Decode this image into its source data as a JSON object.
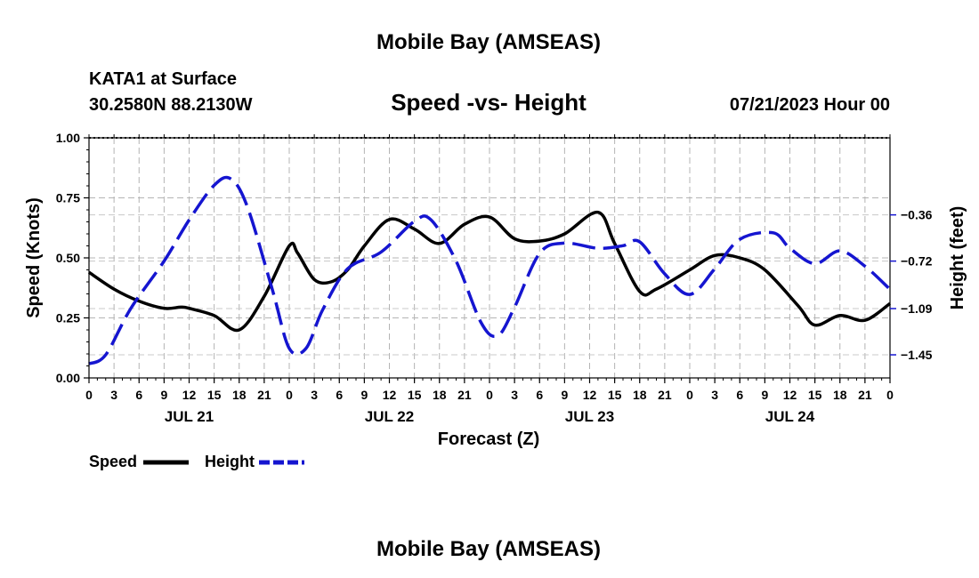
{
  "page": {
    "title_top": "Mobile Bay (AMSEAS)",
    "title_bottom": "Mobile Bay (AMSEAS)",
    "station": "KATA1 at Surface",
    "coords": "30.2580N  88.2130W",
    "datetime": "07/21/2023 Hour 00"
  },
  "chart_data": {
    "type": "line",
    "title": "Speed -vs- Height",
    "xlabel": "Forecast (Z)",
    "ylabel_left": "Speed (Knots)",
    "ylabel_right": "Height (feet)",
    "x_range_hours": [
      0,
      96
    ],
    "ylim_left": [
      0,
      1.0
    ],
    "ylim_right": [
      -1.63,
      0.24
    ],
    "y_ticks_left": [
      {
        "v": 0.0,
        "label": "0.00"
      },
      {
        "v": 0.25,
        "label": "0.25"
      },
      {
        "v": 0.5,
        "label": "0.50"
      },
      {
        "v": 0.75,
        "label": "0.75"
      },
      {
        "v": 1.0,
        "label": "1.00"
      }
    ],
    "y_ticks_right": [
      {
        "v": -1.45,
        "label": "−1.45"
      },
      {
        "v": -1.09,
        "label": "−1.09"
      },
      {
        "v": -0.72,
        "label": "−0.72"
      },
      {
        "v": -0.36,
        "label": "−0.36"
      }
    ],
    "x_tick_labels": [
      "0",
      "3",
      "6",
      "9",
      "12",
      "15",
      "18",
      "21",
      "0",
      "3",
      "6",
      "9",
      "12",
      "15",
      "18",
      "21",
      "0",
      "3",
      "6",
      "9",
      "12",
      "15",
      "18",
      "21",
      "0",
      "3",
      "6",
      "9",
      "12",
      "15",
      "18",
      "21",
      "0"
    ],
    "day_labels": [
      {
        "hour": 12,
        "label": "JUL 21"
      },
      {
        "hour": 36,
        "label": "JUL 22"
      },
      {
        "hour": 60,
        "label": "JUL 23"
      },
      {
        "hour": 84,
        "label": "JUL 24"
      }
    ],
    "legend": {
      "speed": "Speed",
      "height": "Height"
    },
    "series": [
      {
        "name": "Speed",
        "color": "#000000",
        "axis": "left",
        "points": [
          [
            0,
            0.44
          ],
          [
            3,
            0.37
          ],
          [
            6,
            0.32
          ],
          [
            9,
            0.29
          ],
          [
            11,
            0.295
          ],
          [
            12,
            0.29
          ],
          [
            15,
            0.26
          ],
          [
            18,
            0.2
          ],
          [
            21,
            0.34
          ],
          [
            24,
            0.55
          ],
          [
            25,
            0.52
          ],
          [
            27,
            0.41
          ],
          [
            29,
            0.4
          ],
          [
            31,
            0.45
          ],
          [
            33,
            0.55
          ],
          [
            36,
            0.66
          ],
          [
            39,
            0.62
          ],
          [
            42,
            0.56
          ],
          [
            45,
            0.64
          ],
          [
            48,
            0.67
          ],
          [
            51,
            0.58
          ],
          [
            54,
            0.57
          ],
          [
            57,
            0.6
          ],
          [
            61,
            0.69
          ],
          [
            63,
            0.56
          ],
          [
            66,
            0.36
          ],
          [
            68,
            0.37
          ],
          [
            72,
            0.45
          ],
          [
            75,
            0.51
          ],
          [
            78,
            0.5
          ],
          [
            81,
            0.45
          ],
          [
            85,
            0.3
          ],
          [
            87,
            0.22
          ],
          [
            90,
            0.26
          ],
          [
            93,
            0.24
          ],
          [
            96,
            0.31
          ]
        ]
      },
      {
        "name": "Height",
        "color": "#1515d0",
        "axis": "right",
        "points": [
          [
            0,
            -1.52
          ],
          [
            2,
            -1.45
          ],
          [
            5,
            -1.09
          ],
          [
            9,
            -0.72
          ],
          [
            12,
            -0.4
          ],
          [
            15,
            -0.13
          ],
          [
            17,
            -0.08
          ],
          [
            19,
            -0.3
          ],
          [
            22,
            -0.95
          ],
          [
            24,
            -1.4
          ],
          [
            26,
            -1.4
          ],
          [
            28,
            -1.1
          ],
          [
            31,
            -0.78
          ],
          [
            35,
            -0.65
          ],
          [
            39,
            -0.41
          ],
          [
            41,
            -0.4
          ],
          [
            44,
            -0.72
          ],
          [
            47,
            -1.2
          ],
          [
            49,
            -1.3
          ],
          [
            51,
            -1.08
          ],
          [
            54,
            -0.66
          ],
          [
            57,
            -0.58
          ],
          [
            61,
            -0.62
          ],
          [
            64,
            -0.6
          ],
          [
            66,
            -0.57
          ],
          [
            69,
            -0.82
          ],
          [
            72,
            -0.98
          ],
          [
            75,
            -0.78
          ],
          [
            78,
            -0.55
          ],
          [
            82,
            -0.5
          ],
          [
            84,
            -0.62
          ],
          [
            87,
            -0.74
          ],
          [
            90,
            -0.64
          ],
          [
            93,
            -0.76
          ],
          [
            96,
            -0.94
          ]
        ]
      }
    ]
  }
}
